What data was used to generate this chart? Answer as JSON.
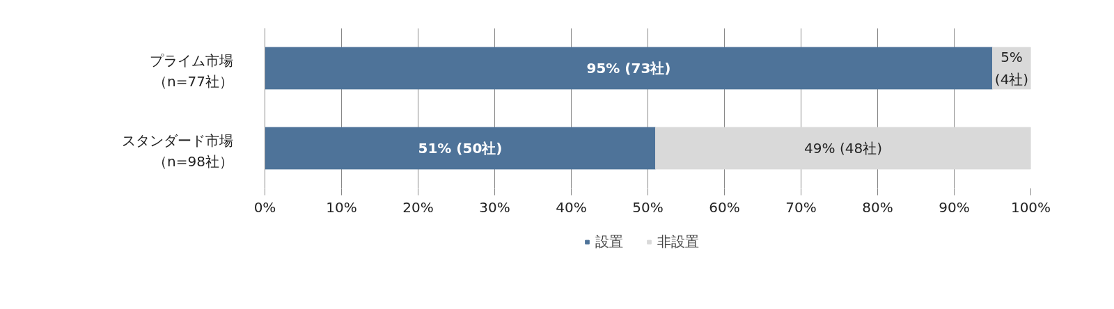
{
  "chart_data": {
    "type": "bar",
    "orientation": "horizontal",
    "stacked": true,
    "categories": [
      "プライム市場（n=77社）",
      "スタンダード市場（n=98社）"
    ],
    "series": [
      {
        "name": "設置",
        "color": "#4e7399",
        "values": [
          95,
          51
        ],
        "value_labels": [
          "95% (73社)",
          "51% (50社)"
        ]
      },
      {
        "name": "非設置",
        "color": "#d9d9d9",
        "values": [
          5,
          49
        ],
        "value_labels": [
          "5%\n(4社)",
          "49% (48社)"
        ]
      }
    ],
    "xlim": [
      0,
      100
    ],
    "xticks": [
      {
        "value": 0,
        "label": "0%"
      },
      {
        "value": 10,
        "label": "10%"
      },
      {
        "value": 20,
        "label": "20%"
      },
      {
        "value": 30,
        "label": "30%"
      },
      {
        "value": 40,
        "label": "40%"
      },
      {
        "value": 50,
        "label": "50%"
      },
      {
        "value": 60,
        "label": "60%"
      },
      {
        "value": 70,
        "label": "70%"
      },
      {
        "value": 80,
        "label": "80%"
      },
      {
        "value": 90,
        "label": "90%"
      },
      {
        "value": 100,
        "label": "100%"
      }
    ],
    "grid": "x",
    "legend": "bottom"
  }
}
